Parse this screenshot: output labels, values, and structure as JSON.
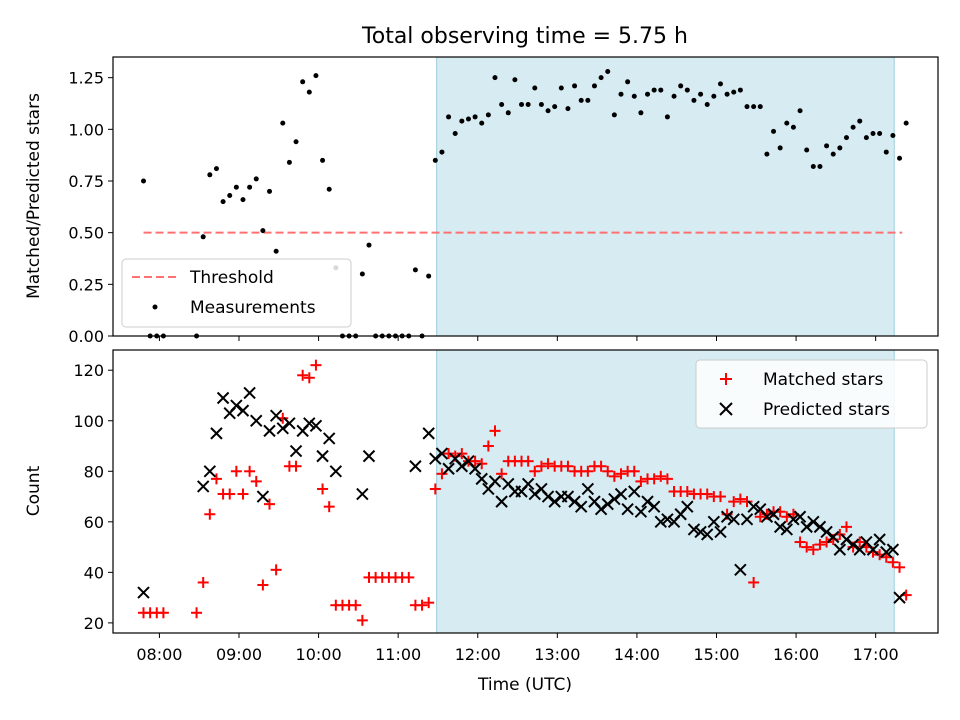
{
  "figure": {
    "title": "Total observing time = 5.75 h"
  },
  "colors": {
    "shade": "#add8e6",
    "threshold": "#ff7070",
    "matched": "#ff0000",
    "predicted": "#000000",
    "measurements": "#000000"
  },
  "chart_data": [
    {
      "type": "scatter",
      "ylabel": "Matched/Predicted stars",
      "xlabel": "",
      "xlim": [
        "07:25",
        "17:47"
      ],
      "ylim": [
        0,
        1.35
      ],
      "yticks": [
        "0.00",
        "0.25",
        "0.50",
        "0.75",
        "1.00",
        "1.25"
      ],
      "shaded_region": [
        "11:29",
        "17:14"
      ],
      "legend": [
        "Threshold",
        "Measurements"
      ],
      "legend_position": "lower-left",
      "series": [
        {
          "name": "Threshold",
          "type": "line",
          "style": "dashed",
          "x": [
            "07:48",
            "17:20"
          ],
          "y": [
            0.5,
            0.5
          ]
        },
        {
          "name": "Measurements",
          "type": "scatter",
          "x": [
            "07:48",
            "07:53",
            "07:58",
            "08:03",
            "08:28",
            "08:33",
            "08:38",
            "08:43",
            "08:48",
            "08:53",
            "08:58",
            "09:03",
            "09:08",
            "09:13",
            "09:18",
            "09:23",
            "09:28",
            "09:33",
            "09:38",
            "09:43",
            "09:48",
            "09:53",
            "09:58",
            "10:03",
            "10:08",
            "10:13",
            "10:18",
            "10:23",
            "10:28",
            "10:33",
            "10:38",
            "10:43",
            "10:48",
            "10:53",
            "10:58",
            "11:03",
            "11:08",
            "11:13",
            "11:18",
            "11:23",
            "11:28",
            "11:33",
            "11:38",
            "11:43",
            "11:48",
            "11:53",
            "11:58",
            "12:03",
            "12:08",
            "12:13",
            "12:18",
            "12:23",
            "12:28",
            "12:33",
            "12:38",
            "12:43",
            "12:48",
            "12:53",
            "12:58",
            "13:03",
            "13:08",
            "13:13",
            "13:18",
            "13:23",
            "13:28",
            "13:33",
            "13:38",
            "13:43",
            "13:48",
            "13:53",
            "13:58",
            "14:03",
            "14:08",
            "14:13",
            "14:18",
            "14:23",
            "14:28",
            "14:33",
            "14:38",
            "14:43",
            "14:48",
            "14:53",
            "14:58",
            "15:03",
            "15:08",
            "15:13",
            "15:18",
            "15:23",
            "15:28",
            "15:33",
            "15:38",
            "15:43",
            "15:48",
            "15:53",
            "15:58",
            "16:03",
            "16:08",
            "16:13",
            "16:18",
            "16:23",
            "16:28",
            "16:33",
            "16:38",
            "16:43",
            "16:48",
            "16:53",
            "16:58",
            "17:03",
            "17:08",
            "17:13",
            "17:18",
            "17:23"
          ],
          "y": [
            0.75,
            0,
            0,
            0,
            0,
            0.48,
            0.78,
            0.81,
            0.65,
            0.68,
            0.72,
            0.66,
            0.72,
            0.76,
            0.51,
            0.7,
            0.41,
            1.03,
            0.84,
            0.94,
            1.23,
            1.18,
            1.26,
            0.85,
            0.71,
            0.33,
            0,
            0,
            0,
            0.3,
            0.44,
            0,
            0,
            0,
            0,
            0,
            0,
            0.32,
            0,
            0.29,
            0.85,
            0.89,
            1.06,
            0.98,
            1.04,
            1.05,
            1.06,
            1.03,
            1.07,
            1.25,
            1.12,
            1.08,
            1.24,
            1.12,
            1.12,
            1.2,
            1.12,
            1.09,
            1.11,
            1.2,
            1.1,
            1.21,
            1.14,
            1.14,
            1.21,
            1.25,
            1.28,
            1.07,
            1.17,
            1.23,
            1.16,
            1.08,
            1.17,
            1.19,
            1.19,
            1.06,
            1.16,
            1.21,
            1.19,
            1.14,
            1.17,
            1.12,
            1.16,
            1.22,
            1.17,
            1.18,
            1.19,
            1.11,
            1.11,
            1.11,
            0.88,
            0.99,
            0.91,
            1.03,
            1.01,
            1.09,
            0.9,
            0.82,
            0.82,
            0.92,
            0.88,
            0.91,
            0.96,
            1.01,
            1.04,
            0.96,
            0.98,
            0.98,
            0.89,
            0.97,
            0.86,
            1.03
          ]
        }
      ]
    },
    {
      "type": "scatter",
      "ylabel": "Count",
      "xlabel": "Time (UTC)",
      "xlim": [
        "07:25",
        "17:47"
      ],
      "ylim": [
        16,
        128
      ],
      "yticks": [
        "20",
        "40",
        "60",
        "80",
        "100",
        "120"
      ],
      "xticks": [
        "08:00",
        "09:00",
        "10:00",
        "11:00",
        "12:00",
        "13:00",
        "14:00",
        "15:00",
        "16:00",
        "17:00"
      ],
      "shaded_region": [
        "11:29",
        "17:14"
      ],
      "legend": [
        "Matched stars",
        "Predicted stars"
      ],
      "legend_position": "upper-right",
      "series": [
        {
          "name": "Matched stars",
          "marker": "+",
          "x": [
            "07:48",
            "07:53",
            "07:58",
            "08:03",
            "08:28",
            "08:33",
            "08:38",
            "08:43",
            "08:48",
            "08:53",
            "08:58",
            "09:03",
            "09:08",
            "09:13",
            "09:18",
            "09:23",
            "09:28",
            "09:33",
            "09:38",
            "09:43",
            "09:48",
            "09:53",
            "09:58",
            "10:03",
            "10:08",
            "10:13",
            "10:18",
            "10:23",
            "10:28",
            "10:33",
            "10:38",
            "10:43",
            "10:48",
            "10:53",
            "10:58",
            "11:03",
            "11:08",
            "11:13",
            "11:18",
            "11:23",
            "11:28",
            "11:33",
            "11:38",
            "11:43",
            "11:48",
            "11:53",
            "11:58",
            "12:03",
            "12:08",
            "12:13",
            "12:18",
            "12:23",
            "12:28",
            "12:33",
            "12:38",
            "12:43",
            "12:48",
            "12:53",
            "12:58",
            "13:03",
            "13:08",
            "13:13",
            "13:18",
            "13:23",
            "13:28",
            "13:33",
            "13:38",
            "13:43",
            "13:48",
            "13:53",
            "13:58",
            "14:03",
            "14:08",
            "14:13",
            "14:18",
            "14:23",
            "14:28",
            "14:33",
            "14:38",
            "14:43",
            "14:48",
            "14:53",
            "14:58",
            "15:03",
            "15:08",
            "15:13",
            "15:18",
            "15:23",
            "15:28",
            "15:33",
            "15:38",
            "15:43",
            "15:48",
            "15:53",
            "15:58",
            "16:03",
            "16:08",
            "16:13",
            "16:18",
            "16:23",
            "16:28",
            "16:33",
            "16:38",
            "16:43",
            "16:48",
            "16:53",
            "16:58",
            "17:03",
            "17:08",
            "17:13",
            "17:18",
            "17:23"
          ],
          "y": [
            24,
            24,
            24,
            24,
            24,
            36,
            63,
            77,
            71,
            71,
            80,
            71,
            80,
            76,
            35,
            67,
            41,
            101,
            82,
            82,
            118,
            117,
            122,
            73,
            66,
            27,
            27,
            27,
            27,
            21,
            38,
            38,
            38,
            38,
            38,
            38,
            38,
            27,
            27,
            28,
            73,
            79,
            87,
            86,
            87,
            84,
            84,
            83,
            90,
            96,
            79,
            84,
            84,
            84,
            84,
            80,
            82,
            83,
            82,
            82,
            82,
            80,
            80,
            80,
            82,
            82,
            80,
            78,
            79,
            80,
            80,
            76,
            77,
            77,
            78,
            77,
            72,
            72,
            72,
            71,
            71,
            71,
            70,
            70,
            63,
            68,
            69,
            68,
            36,
            62,
            63,
            64,
            64,
            62,
            63,
            52,
            50,
            49,
            51,
            52,
            53,
            55,
            58,
            50,
            52,
            50,
            48,
            47,
            46,
            44,
            42,
            31
          ]
        },
        {
          "name": "Predicted stars",
          "marker": "x",
          "x": [
            "07:48",
            "08:33",
            "08:38",
            "08:43",
            "08:48",
            "08:53",
            "08:58",
            "09:03",
            "09:08",
            "09:13",
            "09:18",
            "09:23",
            "09:28",
            "09:33",
            "09:38",
            "09:43",
            "09:48",
            "09:53",
            "09:58",
            "10:03",
            "10:08",
            "10:13",
            "10:33",
            "10:38",
            "11:13",
            "11:23",
            "11:28",
            "11:33",
            "11:38",
            "11:43",
            "11:48",
            "11:53",
            "11:58",
            "12:03",
            "12:08",
            "12:13",
            "12:18",
            "12:23",
            "12:28",
            "12:33",
            "12:38",
            "12:43",
            "12:48",
            "12:53",
            "12:58",
            "13:03",
            "13:08",
            "13:13",
            "13:18",
            "13:23",
            "13:28",
            "13:33",
            "13:38",
            "13:43",
            "13:48",
            "13:53",
            "13:58",
            "14:03",
            "14:08",
            "14:13",
            "14:18",
            "14:23",
            "14:28",
            "14:33",
            "14:38",
            "14:43",
            "14:48",
            "14:53",
            "14:58",
            "15:03",
            "15:08",
            "15:13",
            "15:18",
            "15:23",
            "15:28",
            "15:33",
            "15:38",
            "15:43",
            "15:48",
            "15:53",
            "15:58",
            "16:03",
            "16:08",
            "16:13",
            "16:18",
            "16:23",
            "16:28",
            "16:33",
            "16:38",
            "16:43",
            "16:48",
            "16:53",
            "16:58",
            "17:03",
            "17:08",
            "17:13",
            "17:18"
          ],
          "y": [
            32,
            74,
            80,
            95,
            109,
            103,
            106,
            104,
            111,
            100,
            70,
            96,
            102,
            97,
            99,
            88,
            96,
            99,
            98,
            86,
            93,
            80,
            71,
            86,
            82,
            95,
            85,
            87,
            81,
            85,
            82,
            84,
            81,
            77,
            73,
            76,
            68,
            75,
            72,
            72,
            75,
            71,
            73,
            70,
            68,
            70,
            70,
            68,
            66,
            73,
            68,
            65,
            67,
            69,
            71,
            65,
            72,
            64,
            68,
            66,
            60,
            61,
            60,
            63,
            66,
            57,
            56,
            55,
            60,
            56,
            62,
            61,
            41,
            61,
            66,
            65,
            62,
            63,
            58,
            57,
            61,
            62,
            58,
            60,
            58,
            56,
            54,
            49,
            53,
            51,
            49,
            52,
            49,
            53,
            48,
            49,
            30
          ]
        }
      ]
    }
  ]
}
